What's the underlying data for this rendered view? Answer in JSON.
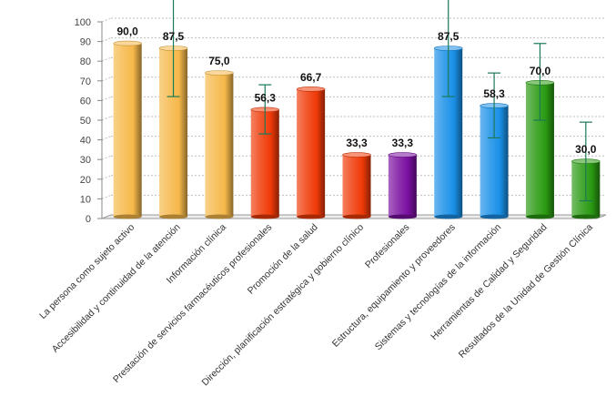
{
  "chart_data": {
    "type": "bar",
    "title": "",
    "xlabel": "",
    "ylabel": "",
    "ylim": [
      0,
      100
    ],
    "yticks": [
      0,
      10,
      20,
      30,
      40,
      50,
      60,
      70,
      80,
      90,
      100
    ],
    "grid": true,
    "categories": [
      "La persona como sujeto activo",
      "Accesibilidad y continuidad de la atención",
      "Información clínica",
      "Prestación de servicios farmacéuticos profesionales",
      "Promoción de la salud",
      "Dirección, planificación estratégica y gobierno clínico",
      "Profesionales",
      "Estructura, equipamiento y proveedores",
      "Sistemas y tecnologías de la información",
      "Herramientas de Calidad y Seguridad",
      "Resultados de la Unidad de Gestión Clínica"
    ],
    "values": [
      90.0,
      87.5,
      75.0,
      56.3,
      66.7,
      33.3,
      33.3,
      87.5,
      58.3,
      70.0,
      30.0
    ],
    "value_labels": [
      "90,0",
      "87,5",
      "75,0",
      "56,3",
      "66,7",
      "33,3",
      "33,3",
      "87,5",
      "58,3",
      "70,0",
      "30,0"
    ],
    "error_bars": [
      null,
      {
        "low": 62,
        "high": 112
      },
      null,
      {
        "low": 43,
        "high": 68
      },
      null,
      null,
      null,
      {
        "low": 62,
        "high": 112
      },
      {
        "low": 41,
        "high": 74
      },
      {
        "low": 50,
        "high": 89
      },
      {
        "low": 9,
        "high": 49
      }
    ],
    "bar_colors": [
      "#f5b84a",
      "#f5b84a",
      "#f5b84a",
      "#f03a08",
      "#f03a08",
      "#f03a08",
      "#7a10a0",
      "#1a90e8",
      "#1a90e8",
      "#2a9a12",
      "#2a9a12"
    ],
    "error_bar_color": "#1a7a55"
  }
}
